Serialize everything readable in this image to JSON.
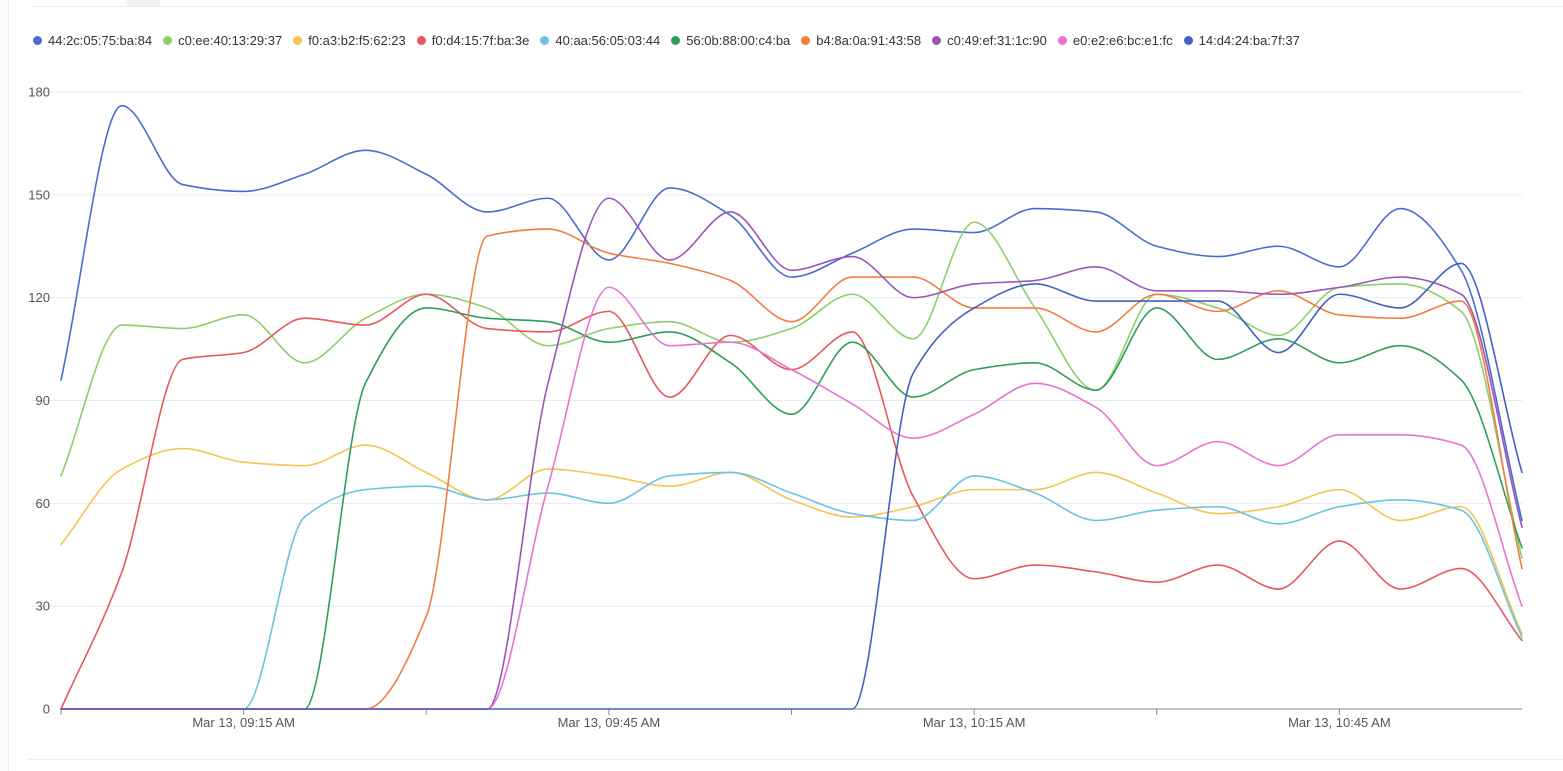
{
  "chart_data": {
    "type": "line",
    "title": "",
    "xlabel": "",
    "ylabel": "",
    "ylim": [
      0,
      180
    ],
    "yticks": [
      0,
      30,
      60,
      90,
      120,
      150,
      180
    ],
    "xlim": [
      "09:00",
      "11:00"
    ],
    "xtick_labels": [
      {
        "t": "09:15",
        "label": "Mar 13, 09:15 AM"
      },
      {
        "t": "09:45",
        "label": "Mar 13, 09:45 AM"
      },
      {
        "t": "10:15",
        "label": "Mar 13, 10:15 AM"
      },
      {
        "t": "10:45",
        "label": "Mar 13, 10:45 AM"
      }
    ],
    "xtick_marks": [
      "09:00",
      "09:15",
      "09:30",
      "09:45",
      "10:00",
      "10:15",
      "10:30",
      "10:45"
    ],
    "grid": "horizontal",
    "legend_position": "top-left",
    "x": [
      "09:00",
      "09:05",
      "09:10",
      "09:15",
      "09:20",
      "09:25",
      "09:30",
      "09:35",
      "09:40",
      "09:45",
      "09:50",
      "09:55",
      "10:00",
      "10:05",
      "10:10",
      "10:15",
      "10:20",
      "10:25",
      "10:30",
      "10:35",
      "10:40",
      "10:45",
      "10:50",
      "10:55",
      "11:00"
    ],
    "series": [
      {
        "name": "44:2c:05:75:ba:84",
        "color": "#4a6bd1",
        "values": [
          96,
          176,
          153,
          151,
          156,
          163,
          156,
          145,
          149,
          131,
          152,
          144,
          126,
          133,
          140,
          139,
          146,
          145,
          135,
          132,
          135,
          129,
          146,
          128,
          55
        ]
      },
      {
        "name": "c0:ee:40:13:29:37",
        "color": "#8ccf6b",
        "values": [
          68,
          112,
          111,
          115,
          101,
          114,
          121,
          117,
          106,
          111,
          113,
          107,
          111,
          121,
          108,
          142,
          117,
          93,
          121,
          117,
          109,
          123,
          124,
          116,
          44
        ]
      },
      {
        "name": "f0:a3:b2:f5:62:23",
        "color": "#f5c451",
        "values": [
          48,
          70,
          76,
          72,
          71,
          77,
          69,
          61,
          70,
          68,
          65,
          69,
          61,
          56,
          59,
          64,
          64,
          69,
          63,
          57,
          59,
          64,
          55,
          59,
          22
        ]
      },
      {
        "name": "f0:d4:15:7f:ba:3e",
        "color": "#e8575b",
        "values": [
          0,
          40,
          102,
          104,
          114,
          112,
          121,
          111,
          110,
          116,
          91,
          109,
          99,
          110,
          62,
          38,
          42,
          40,
          37,
          42,
          35,
          49,
          35,
          41,
          20
        ]
      },
      {
        "name": "40:aa:56:05:03:44",
        "color": "#6bc3e0",
        "values": [
          0,
          0,
          0,
          0,
          56,
          64,
          65,
          61,
          63,
          60,
          68,
          69,
          63,
          57,
          55,
          68,
          63,
          55,
          58,
          59,
          54,
          59,
          61,
          58,
          21
        ]
      },
      {
        "name": "56:0b:88:00:c4:ba",
        "color": "#2f9e5a",
        "values": [
          0,
          0,
          0,
          0,
          0,
          95,
          117,
          114,
          113,
          107,
          110,
          101,
          86,
          107,
          91,
          99,
          101,
          93,
          117,
          102,
          108,
          101,
          106,
          96,
          47
        ]
      },
      {
        "name": "b4:8a:0a:91:43:58",
        "color": "#f27d3f",
        "values": [
          0,
          0,
          0,
          0,
          0,
          0,
          27,
          138,
          140,
          133,
          130,
          125,
          113,
          126,
          126,
          117,
          117,
          110,
          121,
          116,
          122,
          115,
          114,
          119,
          41
        ]
      },
      {
        "name": "c0:49:ef:31:1c:90",
        "color": "#9a55b8",
        "values": [
          0,
          0,
          0,
          0,
          0,
          0,
          0,
          0,
          95,
          149,
          131,
          145,
          128,
          132,
          120,
          124,
          125,
          129,
          122,
          122,
          121,
          123,
          126,
          121,
          53
        ]
      },
      {
        "name": "e0:e2:e6:bc:e1:fc",
        "color": "#ea73d2",
        "values": [
          0,
          0,
          0,
          0,
          0,
          0,
          0,
          0,
          65,
          123,
          106,
          107,
          99,
          89,
          79,
          86,
          95,
          88,
          71,
          78,
          71,
          80,
          80,
          77,
          30
        ]
      },
      {
        "name": "14:d4:24:ba:7f:37",
        "color": "#4361c2",
        "values": [
          0,
          0,
          0,
          0,
          0,
          0,
          0,
          0,
          0,
          0,
          0,
          0,
          0,
          0,
          98,
          117,
          124,
          119,
          119,
          119,
          104,
          121,
          117,
          130,
          69
        ]
      }
    ]
  }
}
